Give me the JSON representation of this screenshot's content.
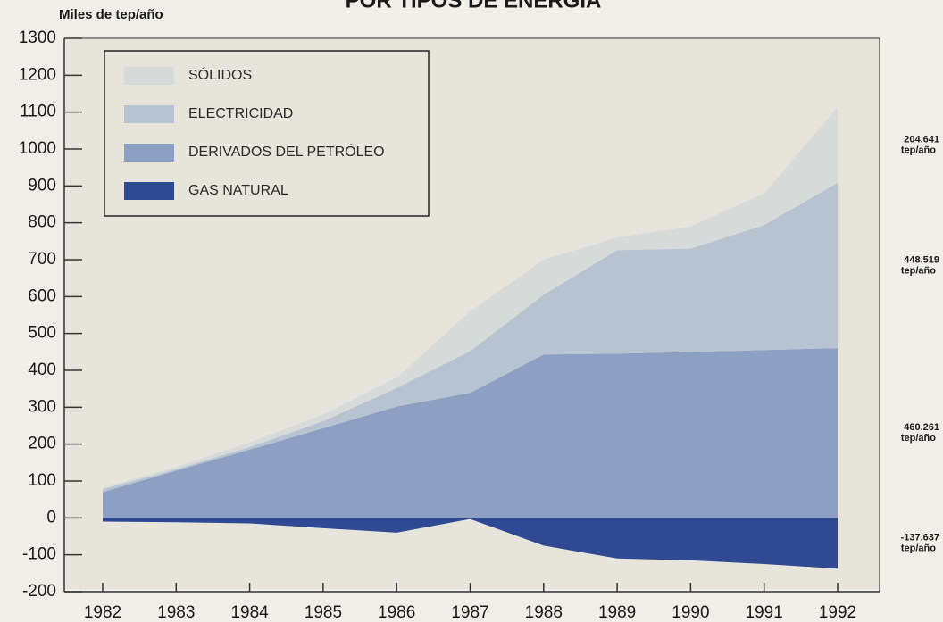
{
  "chart_data": {
    "type": "stacked_area",
    "title": "POR TIPOS DE ENERGIA",
    "y_label": "Miles de tep/año",
    "categories": [
      "1982",
      "1983",
      "1984",
      "1985",
      "1986",
      "1987",
      "1988",
      "1989",
      "1990",
      "1991",
      "1992"
    ],
    "series": [
      {
        "name": "GAS NATURAL",
        "color": "#2f4a93",
        "values": [
          -10,
          -12,
          -15,
          -28,
          -40,
          -3,
          -75,
          -110,
          -115,
          -125,
          -137.637
        ],
        "end_label": "-137.637",
        "end_unit": "tep/año"
      },
      {
        "name": "DERIVADOS DEL PETRÓLEO",
        "color": "#8d9fc2",
        "values": [
          70,
          128,
          185,
          243,
          302,
          339,
          443,
          445,
          450,
          455,
          460.261
        ],
        "end_label": "460.261",
        "end_unit": "tep/año"
      },
      {
        "name": "ELECTRICIDAD",
        "color": "#b8c3d2",
        "values": [
          8,
          4,
          7,
          19,
          50,
          113,
          162,
          281,
          280,
          339,
          448.519
        ],
        "end_label": "448.519",
        "end_unit": "tep/año"
      },
      {
        "name": "SÓLIDOS",
        "color": "#d6dad9",
        "values": [
          4,
          6,
          13,
          18,
          28,
          108,
          95,
          34,
          60,
          86,
          204.641
        ],
        "end_label": "204.641",
        "end_unit": "tep/año"
      }
    ],
    "ylim": [
      -200,
      1300
    ],
    "yticks": [
      -200,
      -100,
      0,
      100,
      200,
      300,
      400,
      500,
      600,
      700,
      800,
      900,
      1000,
      1100,
      1200,
      1300
    ],
    "background": "#e7e5db"
  }
}
